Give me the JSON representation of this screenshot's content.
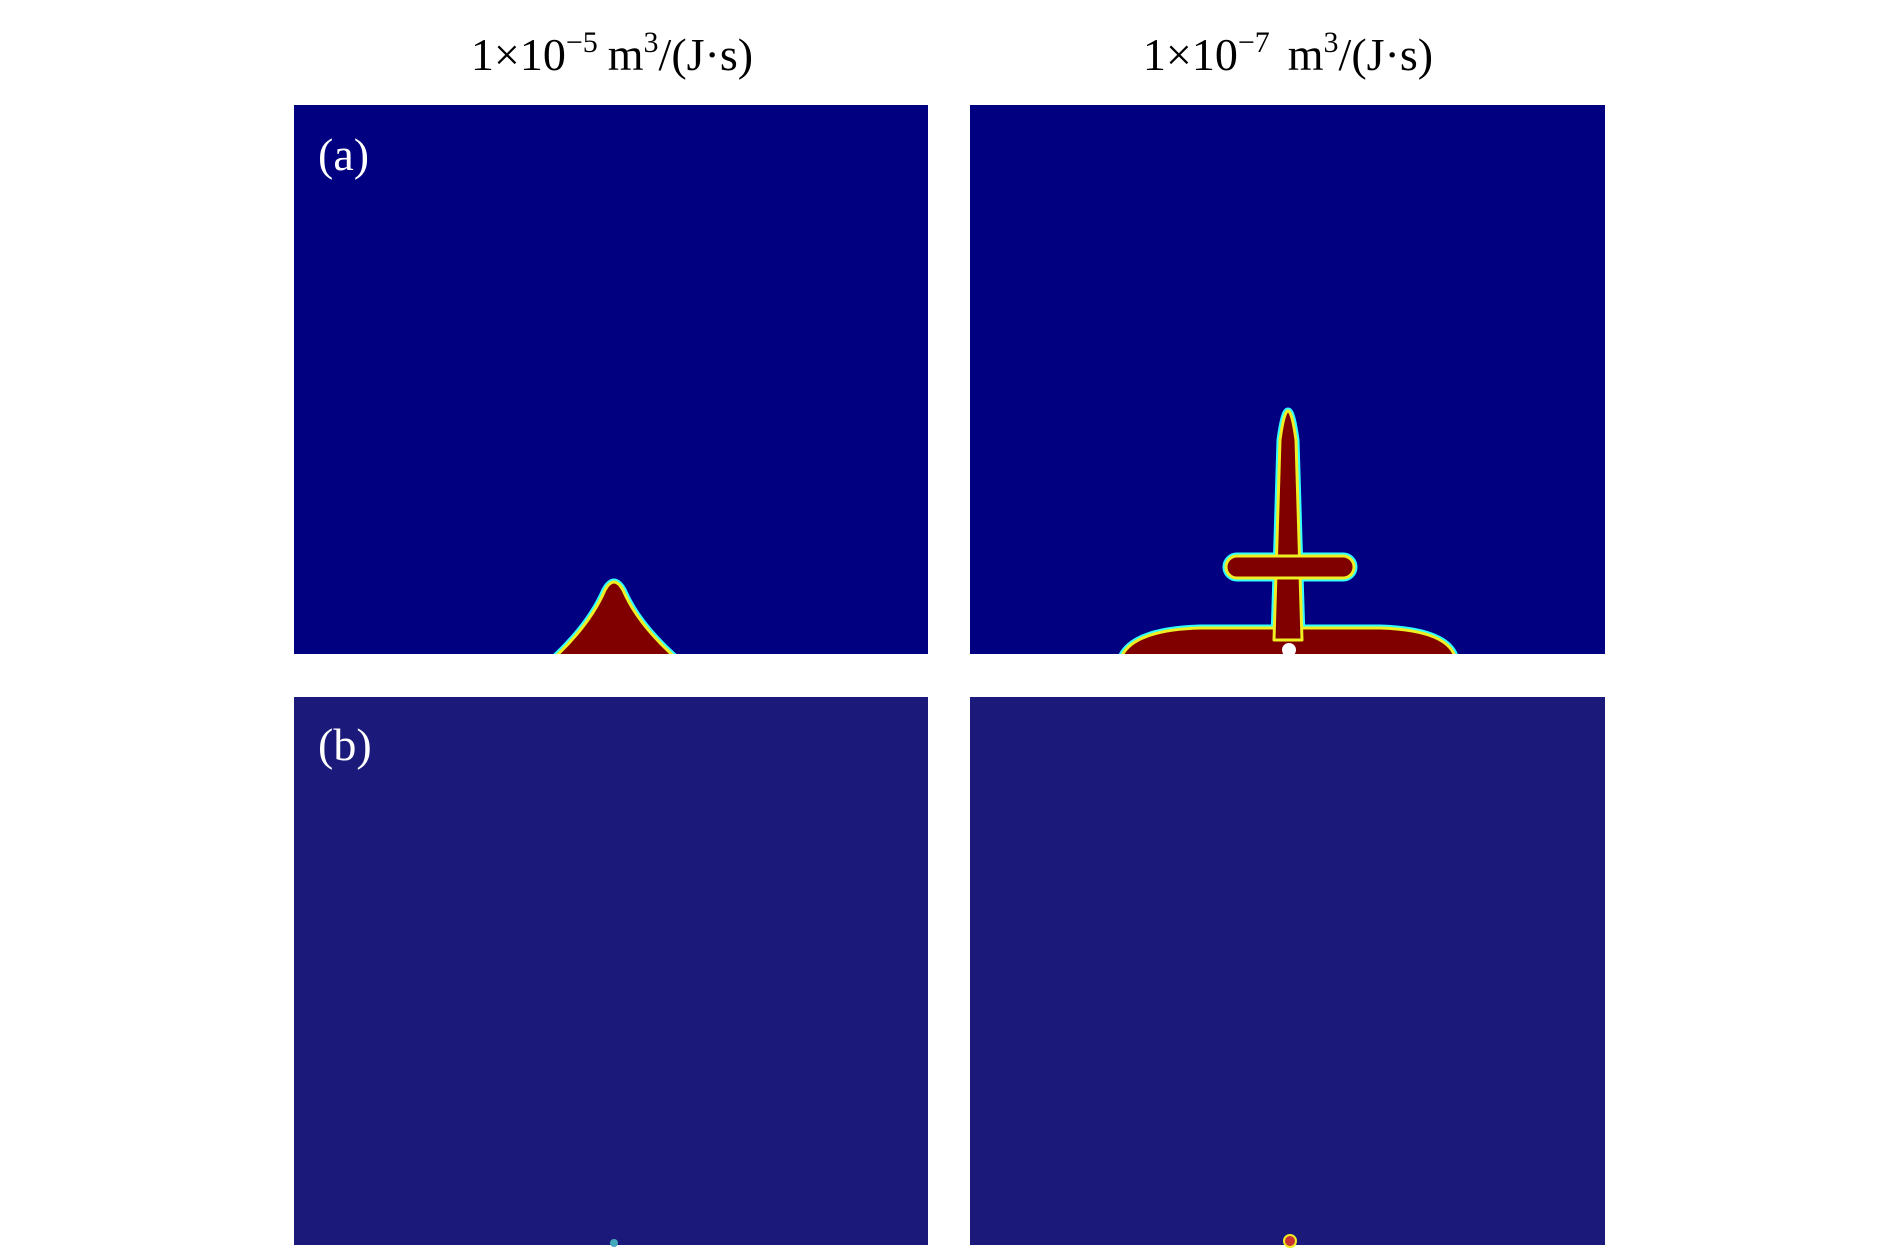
{
  "columns": [
    {
      "base": "1×10",
      "exponent": "−5",
      "unit": "m",
      "unit_exponent": "3",
      "unit_rest": "/(J·s)"
    },
    {
      "base": "1×10",
      "exponent": "−7",
      "unit": "m",
      "unit_exponent": "3",
      "unit_rest": "/(J·s)"
    }
  ],
  "rows": [
    {
      "label": "(a)"
    },
    {
      "label": "(b)"
    }
  ]
}
